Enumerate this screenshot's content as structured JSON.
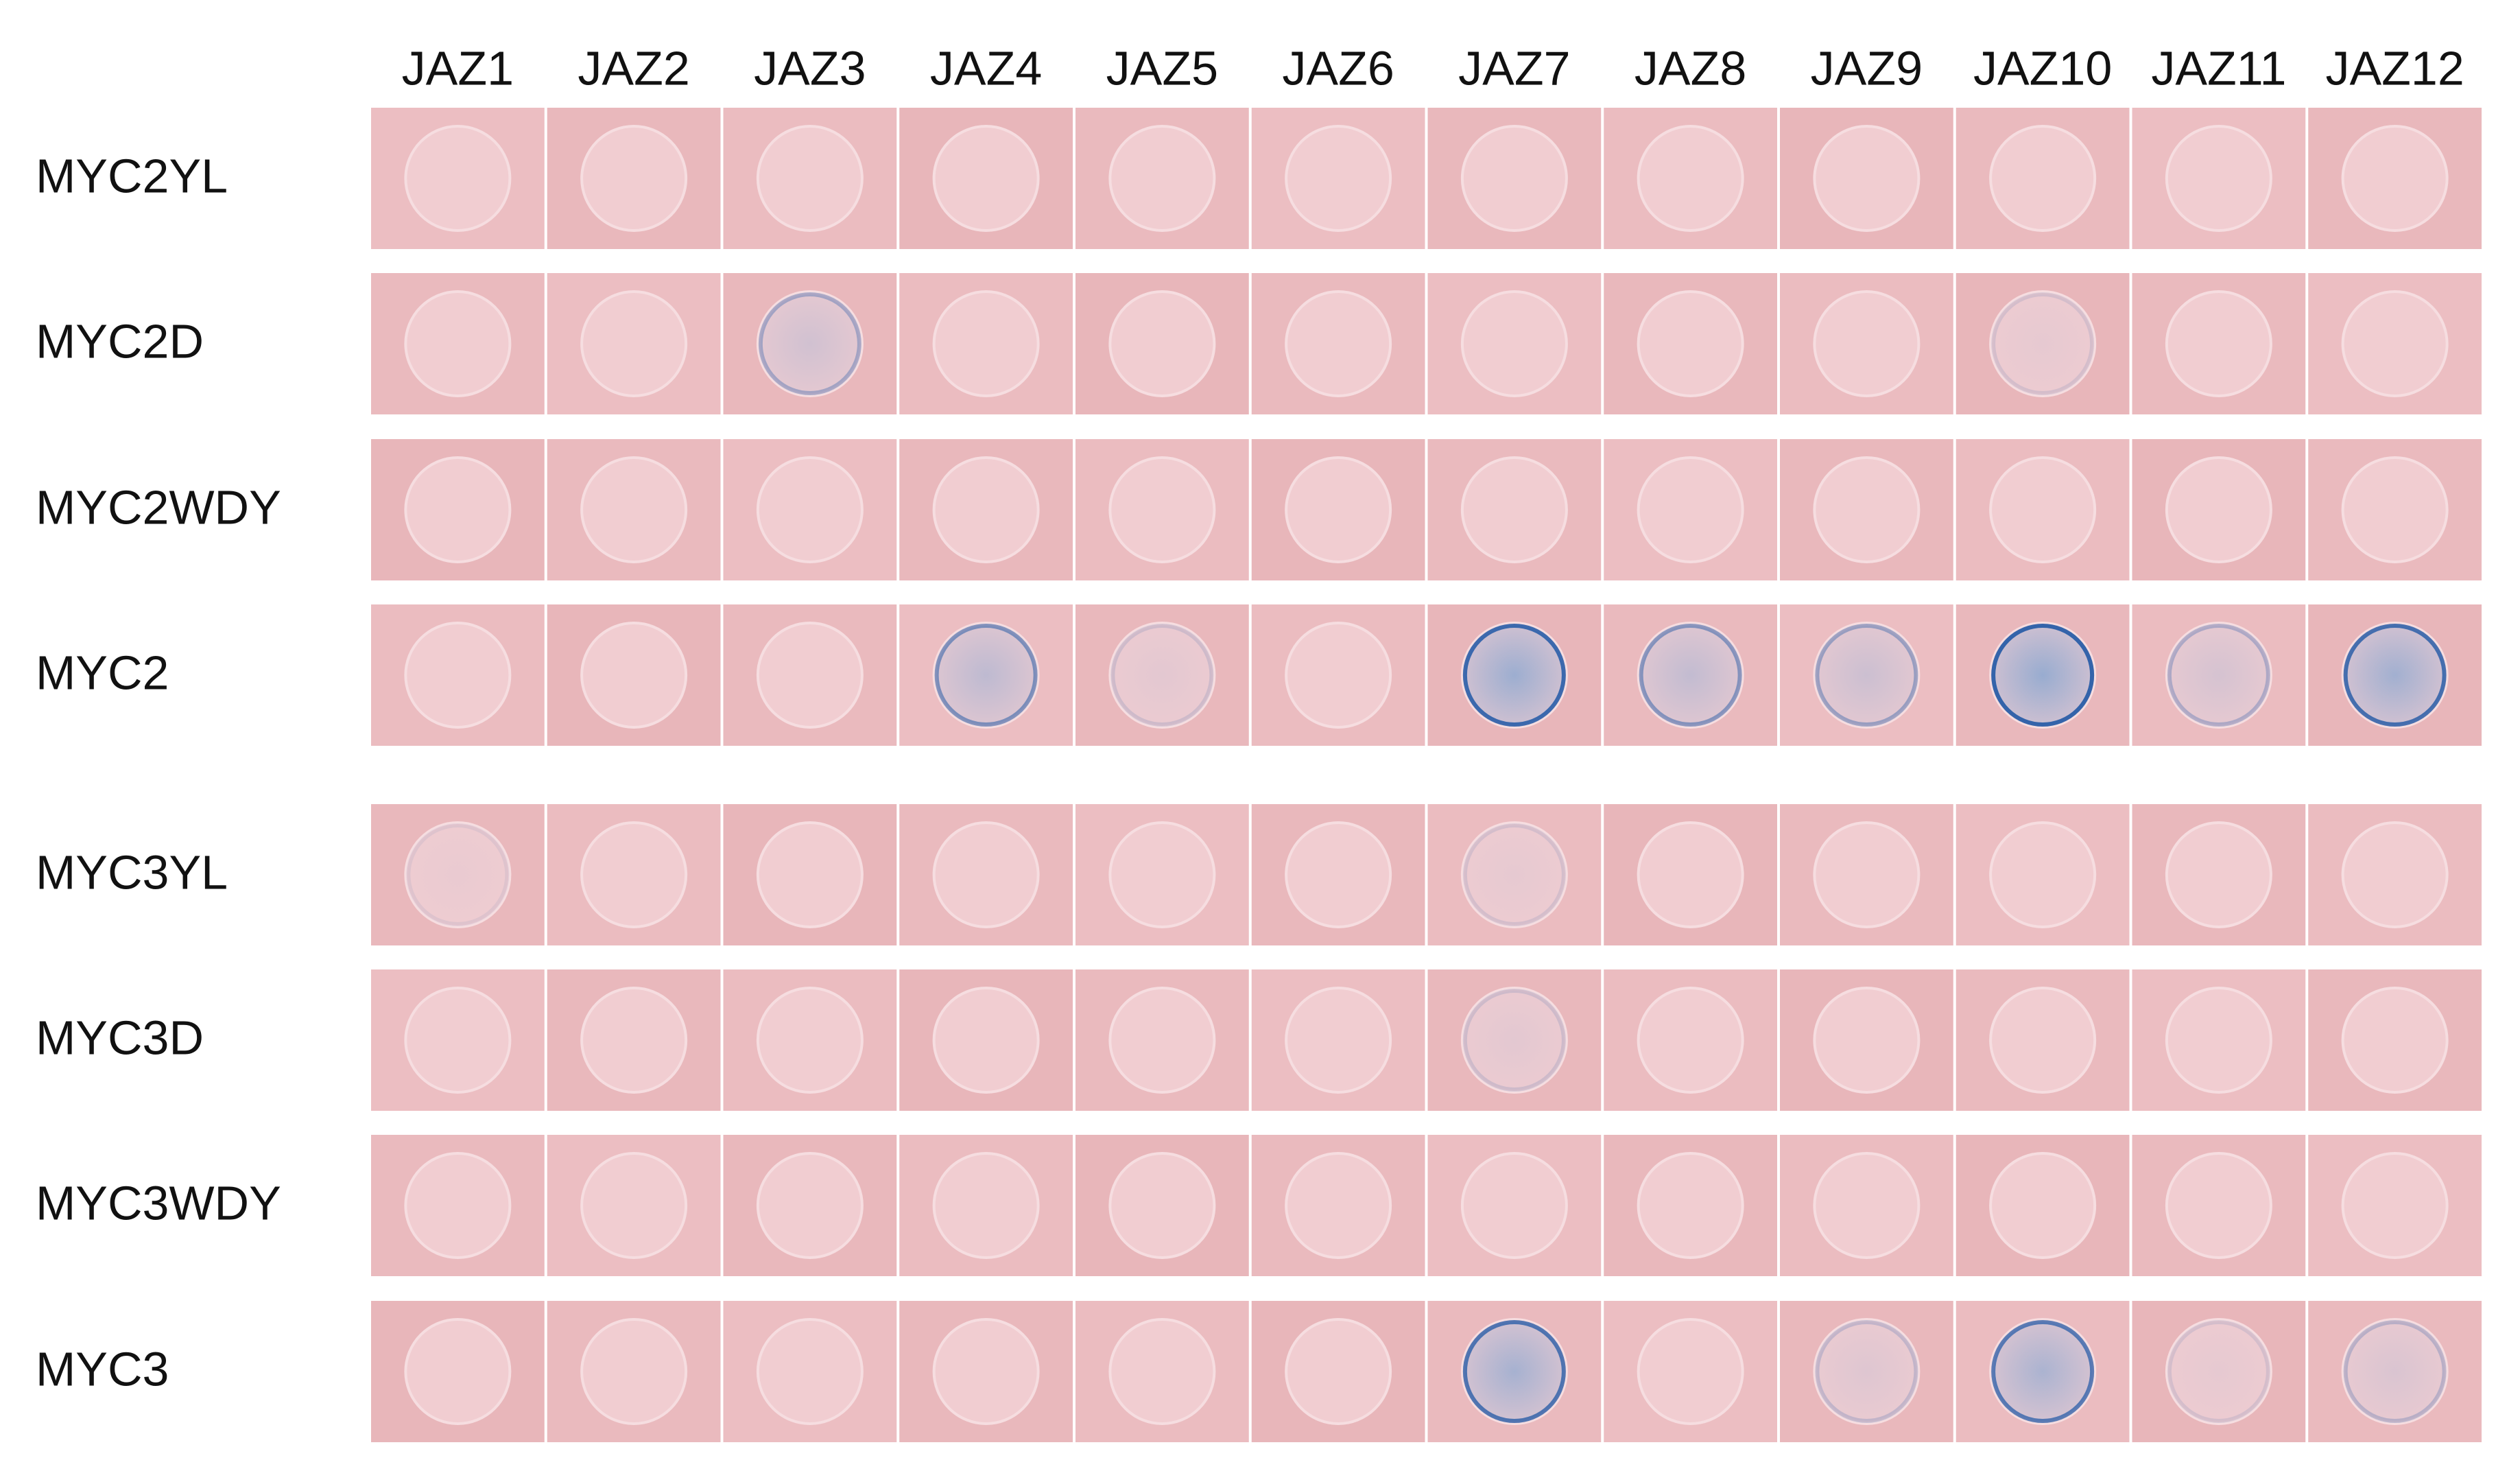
{
  "columns": [
    "JAZ1",
    "JAZ2",
    "JAZ3",
    "JAZ4",
    "JAZ5",
    "JAZ6",
    "JAZ7",
    "JAZ8",
    "JAZ9",
    "JAZ10",
    "JAZ11",
    "JAZ12"
  ],
  "rows": [
    "MYC2YL",
    "MYC2D",
    "MYC2WDY",
    "MYC2",
    "MYC3YL",
    "MYC3D",
    "MYC3WDY",
    "MYC3"
  ]
}
